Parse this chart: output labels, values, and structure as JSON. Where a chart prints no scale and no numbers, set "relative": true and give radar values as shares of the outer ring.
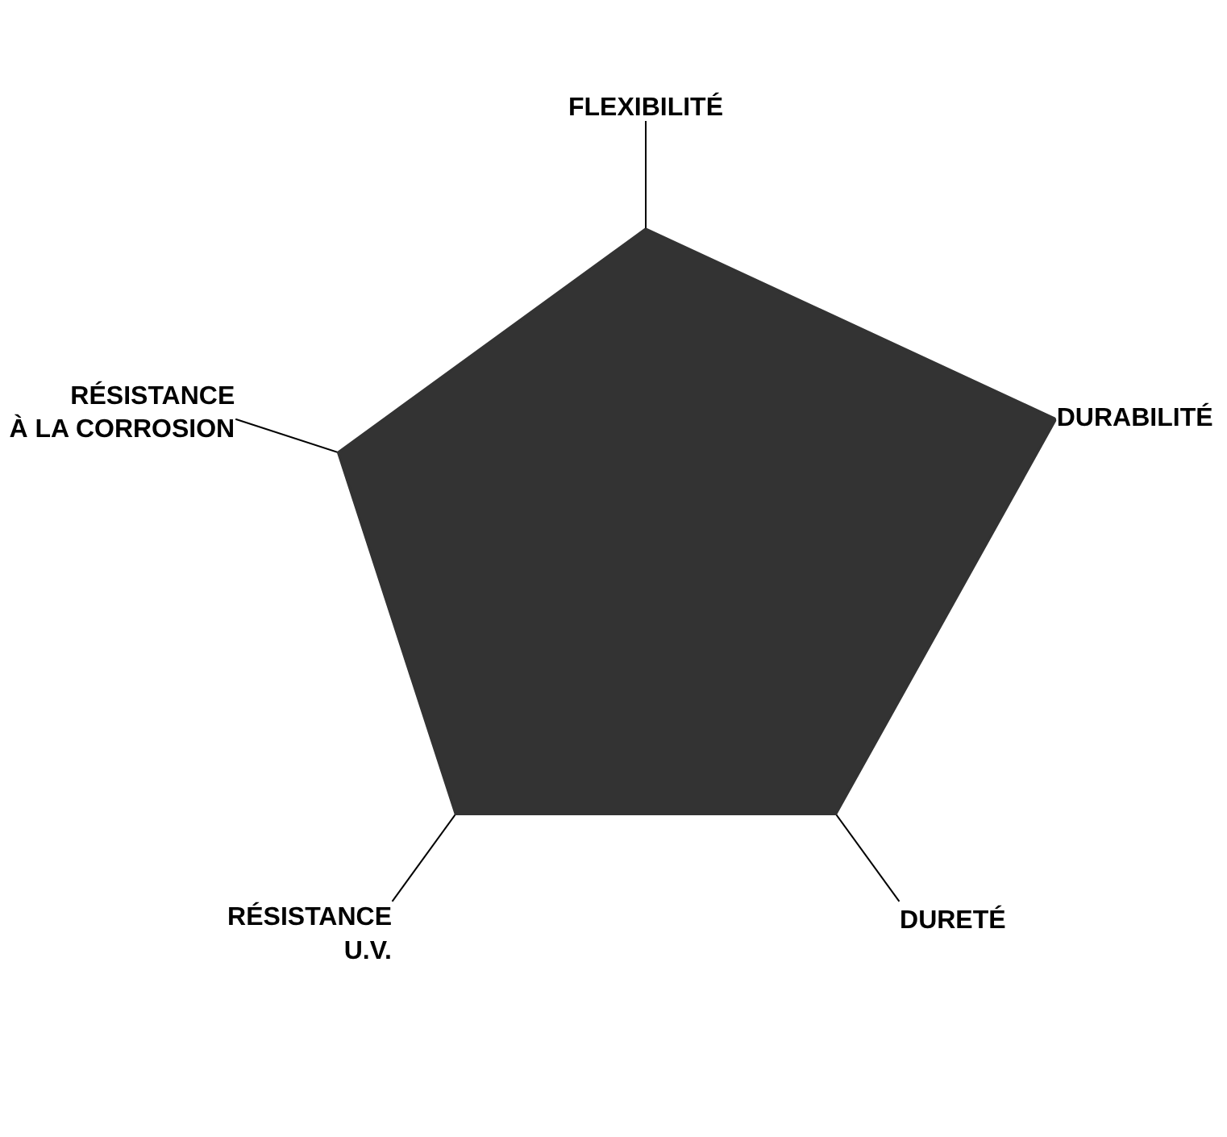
{
  "chart_data": {
    "type": "radar",
    "relative": true,
    "categories": [
      "FLEXIBILITÉ",
      "DURABILITÉ",
      "DURETÉ",
      "RÉSISTANCE U.V.",
      "RÉSISTANCE À LA CORROSION"
    ],
    "series": [
      {
        "color": "#333333",
        "values": [
          0.75,
          1,
          0.75,
          0.75,
          0.75
        ]
      }
    ]
  }
}
